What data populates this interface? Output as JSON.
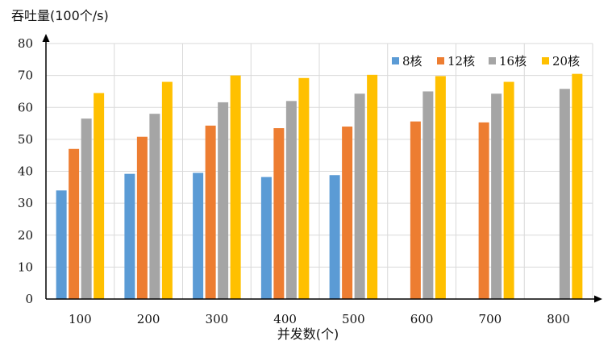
{
  "chart_data": {
    "type": "bar",
    "title": "",
    "ylabel": "吞吐量(100个/s)",
    "xlabel": "并发数(个)",
    "categories": [
      "100",
      "200",
      "300",
      "400",
      "500",
      "600",
      "700",
      "800"
    ],
    "ylim": [
      0,
      80
    ],
    "yticks": [
      0,
      10,
      20,
      30,
      40,
      50,
      60,
      70,
      80
    ],
    "grid": true,
    "legend_position": "top-right",
    "series": [
      {
        "name": "8核",
        "color": "#5b9bd5",
        "values": [
          34,
          39.2,
          39.5,
          38.2,
          38.8,
          null,
          null,
          null
        ]
      },
      {
        "name": "12核",
        "color": "#ed7d31",
        "values": [
          47,
          50.8,
          54.3,
          53.5,
          54,
          55.6,
          55.3,
          null
        ]
      },
      {
        "name": "16核",
        "color": "#a5a5a5",
        "values": [
          56.5,
          58,
          61.6,
          62,
          64.3,
          65,
          64.3,
          65.8
        ]
      },
      {
        "name": "20核",
        "color": "#ffc000",
        "values": [
          64.5,
          68,
          70,
          69.2,
          70.2,
          69.8,
          68,
          70.5
        ]
      }
    ]
  }
}
